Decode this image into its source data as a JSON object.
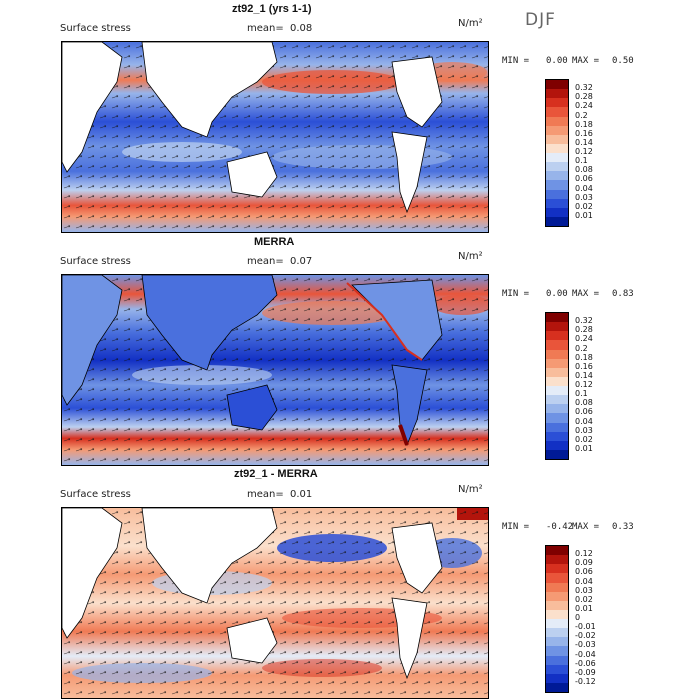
{
  "season": "DJF",
  "panels": [
    {
      "title": "zt92_1 (yrs 1-1)",
      "variable": "Surface stress",
      "mean_label": "mean=",
      "mean_value": "0.08",
      "units": "N/m²",
      "min_label": "MIN =",
      "min_value": "0.00",
      "max_label": "MAX =",
      "max_value": "0.50",
      "colorbar": {
        "levels": [
          "0.32",
          "0.28",
          "0.24",
          "0.2",
          "0.18",
          "0.16",
          "0.14",
          "0.12",
          "0.1",
          "0.08",
          "0.06",
          "0.04",
          "0.03",
          "0.02",
          "0.01"
        ],
        "colors": [
          "#7f0000",
          "#b3140c",
          "#d7301f",
          "#e9553a",
          "#f07a54",
          "#f59a74",
          "#f8bd9c",
          "#fbe0cc",
          "#e4ecf8",
          "#bcd0f0",
          "#97b4ea",
          "#6f93e4",
          "#4a70dd",
          "#2b4fd6",
          "#1230c4",
          "#001a96"
        ]
      }
    },
    {
      "title": "MERRA",
      "variable": "Surface stress",
      "mean_label": "mean=",
      "mean_value": "0.07",
      "units": "N/m²",
      "min_label": "MIN =",
      "min_value": "0.00",
      "max_label": "MAX =",
      "max_value": "0.83",
      "colorbar": {
        "levels": [
          "0.32",
          "0.28",
          "0.24",
          "0.2",
          "0.18",
          "0.16",
          "0.14",
          "0.12",
          "0.1",
          "0.08",
          "0.06",
          "0.04",
          "0.03",
          "0.02",
          "0.01"
        ],
        "colors": [
          "#7f0000",
          "#b3140c",
          "#d7301f",
          "#e9553a",
          "#f07a54",
          "#f59a74",
          "#f8bd9c",
          "#fbe0cc",
          "#e4ecf8",
          "#bcd0f0",
          "#97b4ea",
          "#6f93e4",
          "#4a70dd",
          "#2b4fd6",
          "#1230c4",
          "#001a96"
        ]
      }
    },
    {
      "title": "zt92_1 - MERRA",
      "variable": "Surface stress",
      "mean_label": "mean=",
      "mean_value": "0.01",
      "units": "N/m²",
      "min_label": "MIN =",
      "min_value": "-0.42",
      "max_label": "MAX =",
      "max_value": "0.33",
      "colorbar": {
        "levels": [
          "0.12",
          "0.09",
          "0.06",
          "0.04",
          "0.03",
          "0.02",
          "0.01",
          "0",
          "-0.01",
          "-0.02",
          "-0.03",
          "-0.04",
          "-0.06",
          "-0.09",
          "-0.12"
        ],
        "colors": [
          "#7f0000",
          "#b3140c",
          "#d7301f",
          "#e9553a",
          "#f07a54",
          "#f59a74",
          "#f8bd9c",
          "#fbe0cc",
          "#e4ecf8",
          "#bcd0f0",
          "#97b4ea",
          "#6f93e4",
          "#4a70dd",
          "#2b4fd6",
          "#1230c4",
          "#001a96"
        ]
      }
    }
  ]
}
